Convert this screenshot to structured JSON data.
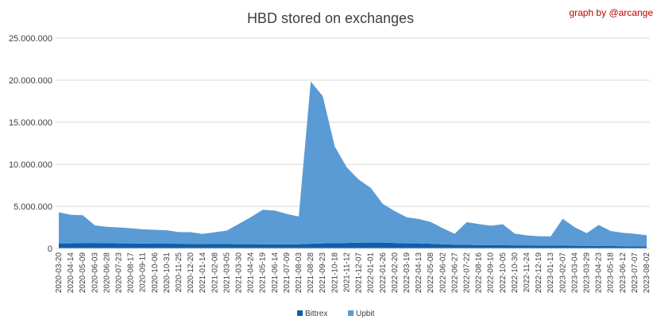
{
  "credit": "graph by @arcange",
  "colors": {
    "bittrex": "#0f5fa8",
    "upbit": "#5b9bd5",
    "grid": "#d9d9d9",
    "credit": "#c00000"
  },
  "chart_data": {
    "type": "area",
    "stacked": true,
    "title": "HBD stored on exchanges",
    "xlabel": "",
    "ylabel": "",
    "ylim": [
      0,
      25000000
    ],
    "yticks": [
      0,
      5000000,
      10000000,
      15000000,
      20000000,
      25000000
    ],
    "ytick_labels": [
      "0",
      "5.000.000",
      "10.000.000",
      "15.000.000",
      "20.000.000",
      "25.000.000"
    ],
    "grid": true,
    "legend_position": "bottom",
    "x": [
      "2020-03-20",
      "2020-04-14",
      "2020-05-09",
      "2020-06-03",
      "2020-06-28",
      "2020-07-23",
      "2020-08-17",
      "2020-09-11",
      "2020-10-06",
      "2020-10-31",
      "2020-11-25",
      "2020-12-20",
      "2021-01-14",
      "2021-02-08",
      "2021-03-05",
      "2021-03-30",
      "2021-04-24",
      "2021-05-19",
      "2021-06-14",
      "2021-07-09",
      "2021-08-03",
      "2021-08-28",
      "2021-09-23",
      "2021-10-18",
      "2021-11-12",
      "2021-12-07",
      "2022-01-01",
      "2022-01-26",
      "2022-02-20",
      "2022-03-19",
      "2022-04-13",
      "2022-05-08",
      "2022-06-02",
      "2022-06-27",
      "2022-07-22",
      "2022-08-16",
      "2022-09-10",
      "2022-10-05",
      "2022-10-30",
      "2022-11-24",
      "2022-12-19",
      "2023-01-13",
      "2023-02-07",
      "2023-03-04",
      "2023-03-29",
      "2023-04-23",
      "2023-05-18",
      "2023-06-12",
      "2023-07-07",
      "2023-08-02"
    ],
    "series": [
      {
        "name": "Bittrex",
        "values": [
          600000,
          600000,
          650000,
          650000,
          620000,
          600000,
          600000,
          580000,
          570000,
          560000,
          550000,
          540000,
          530000,
          520000,
          520000,
          510000,
          510000,
          500000,
          500000,
          500000,
          500000,
          550000,
          600000,
          620000,
          650000,
          680000,
          700000,
          700000,
          650000,
          600000,
          600000,
          550000,
          500000,
          450000,
          420000,
          400000,
          400000,
          380000,
          370000,
          360000,
          350000,
          340000,
          330000,
          320000,
          310000,
          300000,
          280000,
          260000,
          240000,
          220000
        ]
      },
      {
        "name": "Upbit",
        "values": [
          3700000,
          3400000,
          3300000,
          2100000,
          1950000,
          1900000,
          1800000,
          1700000,
          1650000,
          1600000,
          1400000,
          1400000,
          1200000,
          1400000,
          1600000,
          2400000,
          3200000,
          4100000,
          4000000,
          3600000,
          3300000,
          19300000,
          17500000,
          11500000,
          9000000,
          7500000,
          6500000,
          4600000,
          3800000,
          3100000,
          2900000,
          2600000,
          1900000,
          1300000,
          2700000,
          2500000,
          2300000,
          2500000,
          1400000,
          1200000,
          1100000,
          1100000,
          3200000,
          2200000,
          1500000,
          2500000,
          1800000,
          1600000,
          1500000,
          1350000
        ]
      }
    ]
  }
}
